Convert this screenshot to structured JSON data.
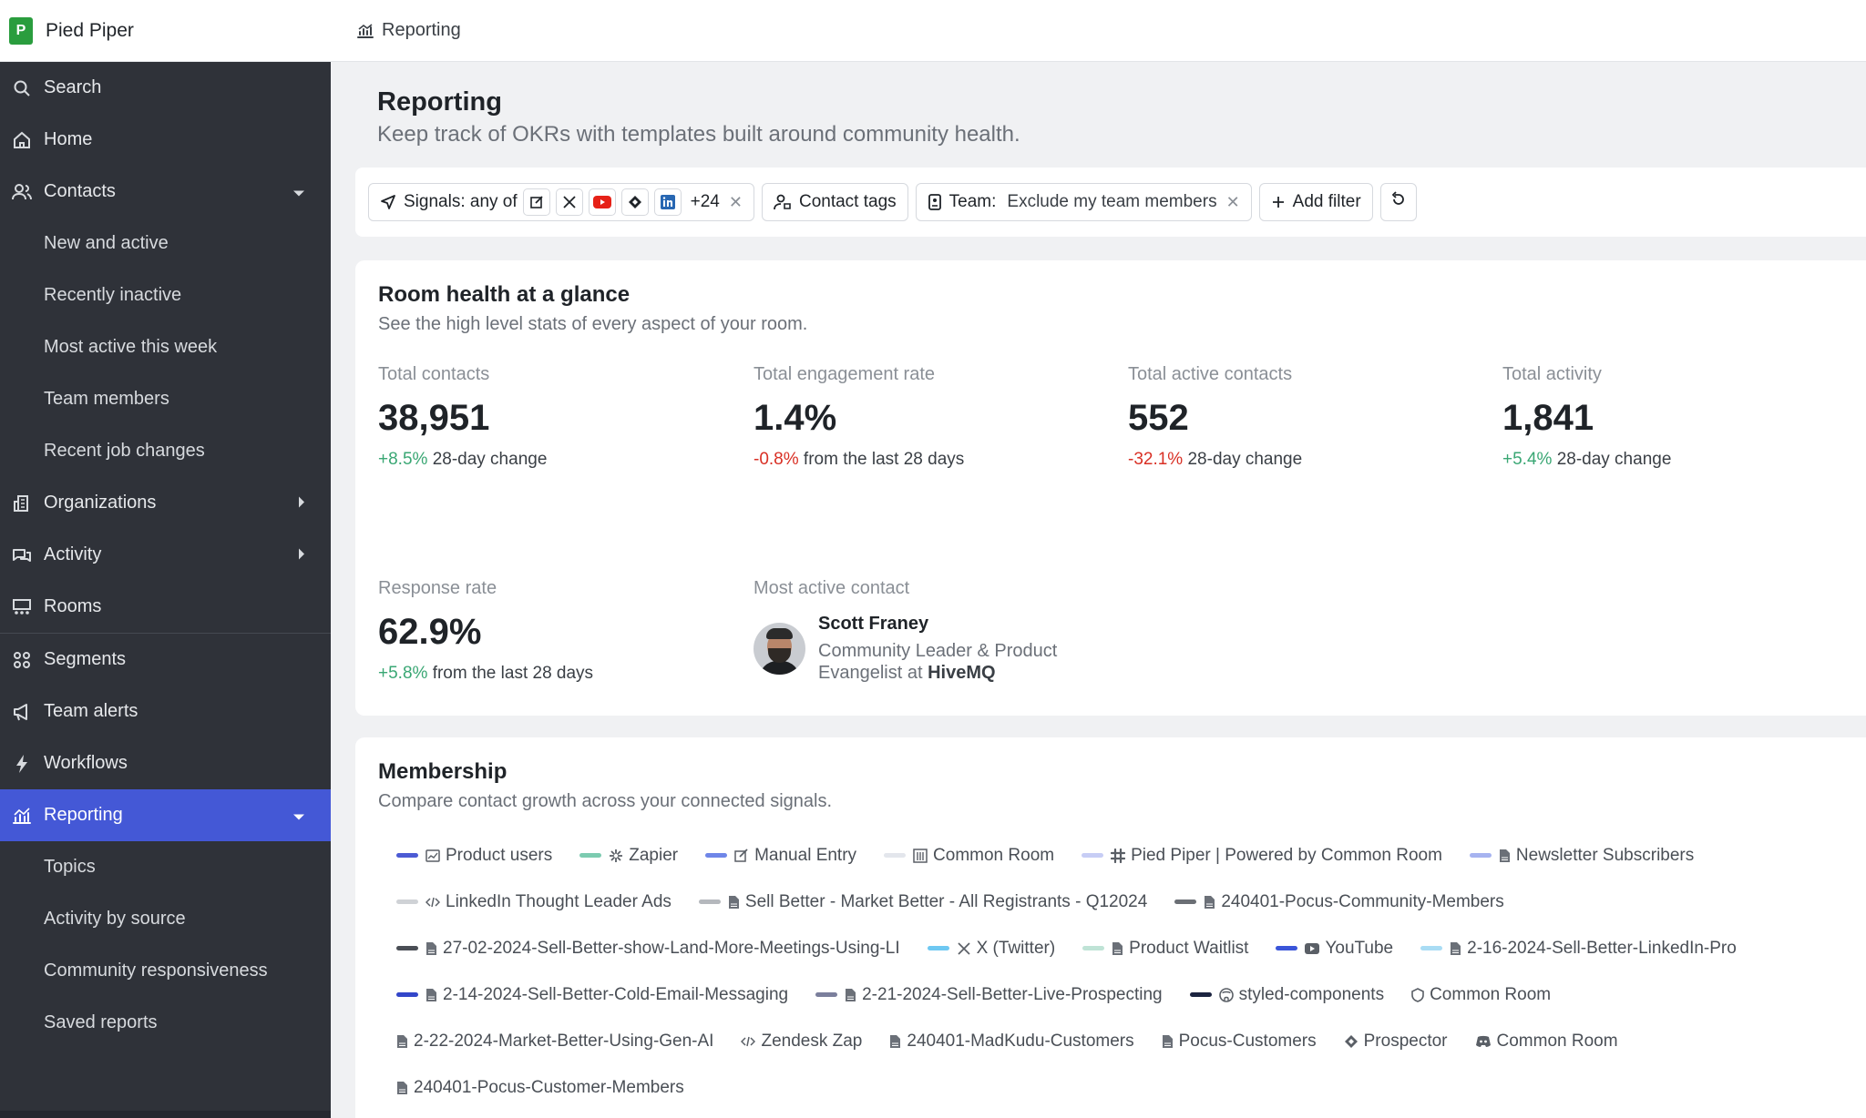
{
  "app": {
    "name": "Pied Piper",
    "logo_text": "P"
  },
  "breadcrumb": {
    "current": "Reporting"
  },
  "sidebar": {
    "items": [
      {
        "label": "Search",
        "icon": "search-icon"
      },
      {
        "label": "Home",
        "icon": "home-icon"
      },
      {
        "label": "Contacts",
        "icon": "contacts-icon",
        "expanded": true
      },
      {
        "label": "New and active",
        "sub": true
      },
      {
        "label": "Recently inactive",
        "sub": true
      },
      {
        "label": "Most active this week",
        "sub": true
      },
      {
        "label": "Team members",
        "sub": true
      },
      {
        "label": "Recent job changes",
        "sub": true
      },
      {
        "label": "Organizations",
        "icon": "organizations-icon",
        "expanded": false
      },
      {
        "label": "Activity",
        "icon": "activity-icon",
        "expanded": false
      },
      {
        "label": "Rooms",
        "icon": "rooms-icon"
      },
      {
        "label": "Segments",
        "icon": "segments-icon"
      },
      {
        "label": "Team alerts",
        "icon": "megaphone-icon"
      },
      {
        "label": "Workflows",
        "icon": "lightning-icon"
      },
      {
        "label": "Reporting",
        "icon": "reporting-icon",
        "expanded": true,
        "active": true
      },
      {
        "label": "Topics",
        "sub": true
      },
      {
        "label": "Activity by source",
        "sub": true
      },
      {
        "label": "Community responsiveness",
        "sub": true
      },
      {
        "label": "Saved reports",
        "sub": true
      }
    ]
  },
  "page": {
    "title": "Reporting",
    "subtitle": "Keep track of OKRs with templates built around community health."
  },
  "filters": {
    "signals_label": "Signals: any of",
    "signals_more": "+24",
    "contact_tags": "Contact tags",
    "team_label": "Team:",
    "team_value": "Exclude my team members",
    "add_filter": "Add filter"
  },
  "room_health": {
    "title": "Room health at a glance",
    "subtitle": "See the high level stats of every aspect of your room.",
    "stats": [
      {
        "label": "Total contacts",
        "value": "38,951",
        "delta": "+8.5%",
        "delta_type": "pos",
        "note": "28-day change"
      },
      {
        "label": "Total engagement rate",
        "value": "1.4%",
        "delta": "-0.8%",
        "delta_type": "neg",
        "note": "from the last 28 days"
      },
      {
        "label": "Total active contacts",
        "value": "552",
        "delta": "-32.1%",
        "delta_type": "neg",
        "note": "28-day change"
      },
      {
        "label": "Total activity",
        "value": "1,841",
        "delta": "+5.4%",
        "delta_type": "pos",
        "note": "28-day change"
      },
      {
        "label": "Response rate",
        "value": "62.9%",
        "delta": "+5.8%",
        "delta_type": "pos",
        "note": "from the last 28 days"
      }
    ],
    "most_active": {
      "label": "Most active contact",
      "name": "Scott Franey",
      "role_line1": "Community Leader & Product",
      "role_line2": "Evangelist at",
      "company": "HiveMQ"
    }
  },
  "membership": {
    "title": "Membership",
    "subtitle": "Compare contact growth across your connected signals.",
    "rows": [
      [
        {
          "label": "Product users",
          "color": "#4c5bd4",
          "icon": "chart-icon"
        },
        {
          "label": "Zapier",
          "color": "#7ccbb0",
          "icon": "zapier-icon"
        },
        {
          "label": "Manual Entry",
          "color": "#6f86e8",
          "icon": "edit-icon"
        },
        {
          "label": "Common Room",
          "color": "#e3e6ec",
          "icon": "building-icon"
        },
        {
          "label": "Pied Piper | Powered by Common Room",
          "color": "#c7cdf5",
          "icon": "slack-icon"
        },
        {
          "label": "Newsletter Subscribers",
          "color": "#a6b3f0",
          "icon": "file-icon"
        }
      ],
      [
        {
          "label": "LinkedIn Thought Leader Ads",
          "color": "#cfd2d6",
          "icon": "code-icon"
        },
        {
          "label": "Sell Better - Market Better - All Registrants - Q12024",
          "color": "#b5b8bd",
          "icon": "file-icon"
        },
        {
          "label": "240401-Pocus-Community-Members",
          "color": "#6b6f75",
          "icon": "file-icon"
        }
      ],
      [
        {
          "label": "27-02-2024-Sell-Better-show-Land-More-Meetings-Using-LI",
          "color": "#4a4e55",
          "icon": "file-icon"
        },
        {
          "label": "X (Twitter)",
          "color": "#6ec8f2",
          "icon": "x-icon"
        },
        {
          "label": "Product Waitlist",
          "color": "#bfe3d6",
          "icon": "file-icon"
        },
        {
          "label": "YouTube",
          "color": "#3a55d9",
          "icon": "youtube-icon"
        },
        {
          "label": "2-16-2024-Sell-Better-LinkedIn-Pro",
          "color": "#a9dcf4",
          "icon": "file-icon"
        }
      ],
      [
        {
          "label": "2-14-2024-Sell-Better-Cold-Email-Messaging",
          "color": "#3346c9",
          "icon": "file-icon"
        },
        {
          "label": "2-21-2024-Sell-Better-Live-Prospecting",
          "color": "#7b7f9c",
          "icon": "file-icon"
        },
        {
          "label": "styled-components",
          "color": "#1c2440",
          "icon": "github-icon"
        },
        {
          "label": "Common Room",
          "color": "",
          "icon": "shield-icon"
        }
      ],
      [
        {
          "label": "2-22-2024-Market-Better-Using-Gen-AI",
          "color": "",
          "icon": "file-icon"
        },
        {
          "label": "Zendesk Zap",
          "color": "",
          "icon": "code-icon"
        },
        {
          "label": "240401-MadKudu-Customers",
          "color": "",
          "icon": "file-icon"
        },
        {
          "label": "Pocus-Customers",
          "color": "",
          "icon": "file-icon"
        },
        {
          "label": "Prospector",
          "color": "",
          "icon": "diamond-icon"
        },
        {
          "label": "Common Room",
          "color": "",
          "icon": "discord-icon"
        }
      ],
      [
        {
          "label": "240401-Pocus-Customer-Members",
          "color": "",
          "icon": "file-icon"
        }
      ]
    ]
  }
}
